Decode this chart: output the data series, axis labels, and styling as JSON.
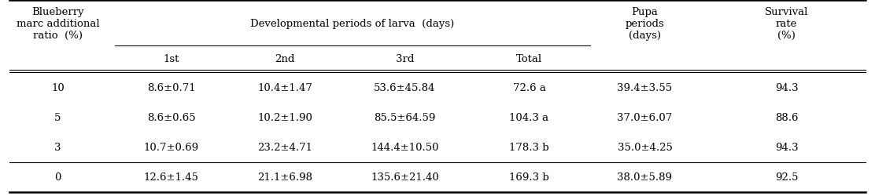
{
  "col_header_row1": [
    "Blueberry\nmarc additional\nratio  (%)",
    "Developmental periods of larva  (days)",
    "",
    "",
    "",
    "Pupa\nperiods\n(days)",
    "Survival\nrate\n(%)"
  ],
  "col_header_row2": [
    "",
    "1st",
    "2nd",
    "3rd",
    "Total",
    "",
    ""
  ],
  "rows": [
    [
      "10",
      "8.6±0.71",
      "10.4±1.47",
      "53.6±45.84",
      "72.6 a",
      "39.4±3.55",
      "94.3"
    ],
    [
      "5",
      "8.6±0.65",
      "10.2±1.90",
      "85.5±64.59",
      "104.3 a",
      "37.0±6.07",
      "88.6"
    ],
    [
      "3",
      "10.7±0.69",
      "23.2±4.71",
      "144.4±10.50",
      "178.3 b",
      "35.0±4.25",
      "94.3"
    ],
    [
      "0",
      "12.6±1.45",
      "21.1±6.98",
      "135.6±21.40",
      "169.3 b",
      "38.0±5.89",
      "92.5"
    ]
  ],
  "col_spans": [
    {
      "col": 1,
      "span": 4,
      "label": "Developmental periods of larva  (days)"
    }
  ],
  "bg_color": "#ffffff",
  "text_color": "#000000",
  "font_size": 9.5,
  "header_font_size": 9.5
}
